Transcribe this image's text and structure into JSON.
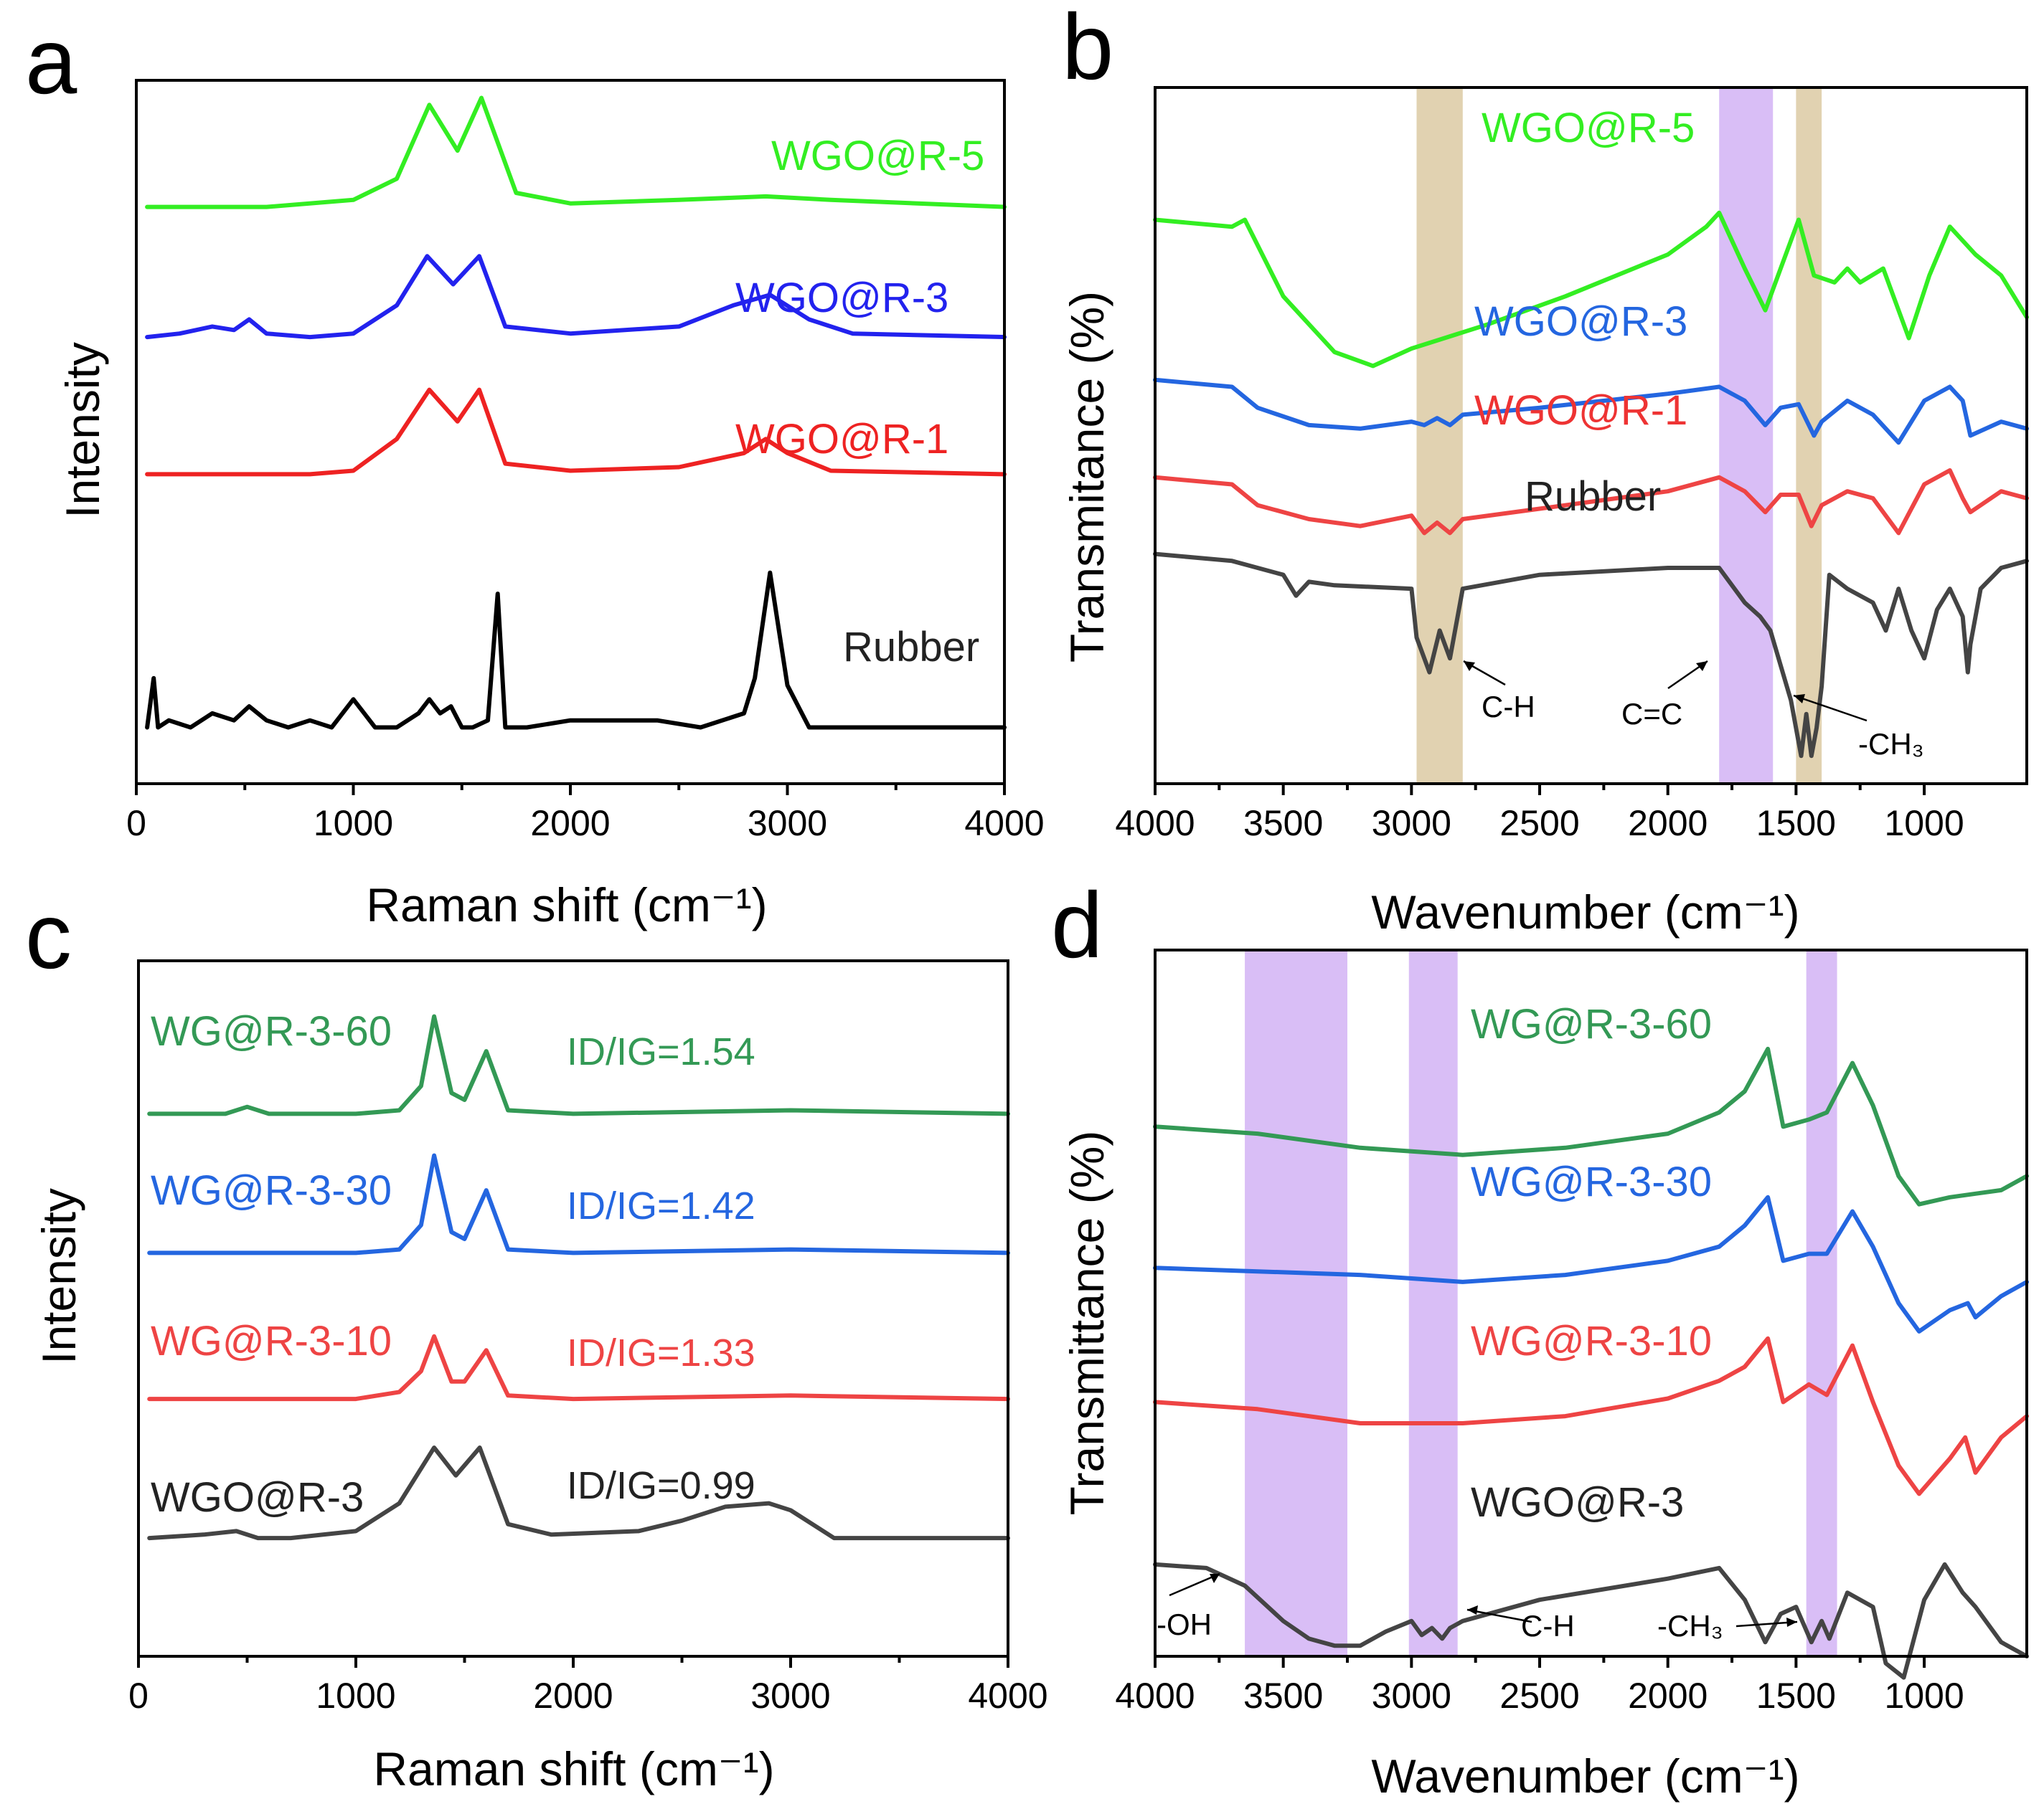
{
  "chart_data": [
    {
      "panel": "a",
      "type": "line",
      "xlabel": "Raman shift (cm⁻¹)",
      "ylabel": "Intensity",
      "xlim": [
        0,
        4000
      ],
      "ylim": [
        0,
        100
      ],
      "xticks": [
        0,
        1000,
        2000,
        3000,
        4000
      ],
      "xtick_labels": [
        "0",
        "1000",
        "2000",
        "3000",
        "4000"
      ],
      "series": [
        {
          "name": "WGO@R-5",
          "color": "#33ee22",
          "x": [
            50,
            600,
            1000,
            1200,
            1350,
            1480,
            1590,
            1750,
            2000,
            2500,
            2900,
            3200,
            4000
          ],
          "y": [
            82,
            82,
            83,
            86,
            96.5,
            90,
            97.5,
            84,
            82.5,
            83,
            83.5,
            83,
            82
          ]
        },
        {
          "name": "WGO@R-3",
          "color": "#2222ee",
          "x": [
            50,
            200,
            350,
            450,
            520,
            600,
            800,
            1000,
            1200,
            1340,
            1460,
            1580,
            1700,
            2000,
            2500,
            2750,
            2920,
            3100,
            3300,
            4000
          ],
          "y": [
            63.5,
            64,
            65,
            64.5,
            66,
            64,
            63.5,
            64,
            68,
            75,
            71,
            75,
            65,
            64,
            65,
            68,
            69.5,
            66,
            64,
            63.5
          ]
        },
        {
          "name": "WGO@R-1",
          "color": "#ee2222",
          "x": [
            50,
            800,
            1000,
            1200,
            1350,
            1480,
            1580,
            1700,
            2000,
            2500,
            2800,
            2900,
            3000,
            3200,
            4000
          ],
          "y": [
            44,
            44,
            44.5,
            49,
            56,
            51.5,
            56,
            45.5,
            44.5,
            45,
            47,
            49,
            47,
            44.5,
            44
          ]
        },
        {
          "name": "Rubber",
          "color": "#000000",
          "x": [
            50,
            80,
            100,
            150,
            250,
            350,
            450,
            520,
            600,
            700,
            800,
            900,
            1000,
            1100,
            1200,
            1300,
            1350,
            1400,
            1450,
            1500,
            1550,
            1620,
            1665,
            1700,
            1800,
            2000,
            2200,
            2400,
            2600,
            2800,
            2850,
            2920,
            3000,
            3100,
            3500,
            4000
          ],
          "y": [
            8,
            15,
            8,
            9,
            8,
            10,
            9,
            11,
            9,
            8,
            9,
            8,
            12,
            8,
            8,
            10,
            12,
            10,
            11,
            8,
            8,
            9,
            27,
            8,
            8,
            9,
            9,
            9,
            8,
            10,
            15,
            30,
            14,
            8,
            8,
            8
          ]
        }
      ],
      "text_labels": [
        "WGO@R-5",
        "WGO@R-3",
        "WGO@R-1",
        "Rubber"
      ]
    },
    {
      "panel": "b",
      "type": "line",
      "xlabel": "Wavenumber (cm⁻¹)",
      "ylabel": "Transmitance (%)",
      "xlim": [
        4000,
        600
      ],
      "ylim": [
        0,
        100
      ],
      "xticks": [
        4000,
        3500,
        3000,
        2500,
        2000,
        1500,
        1000
      ],
      "xtick_labels": [
        "4000",
        "3500",
        "3000",
        "2500",
        "2000",
        "1500",
        "1000"
      ],
      "bands": [
        {
          "from": 2980,
          "to": 2800,
          "color": "#dccaa3"
        },
        {
          "from": 1800,
          "to": 1590,
          "color": "#d2b3f5"
        },
        {
          "from": 1500,
          "to": 1400,
          "color": "#dccaa3"
        }
      ],
      "series": [
        {
          "name": "WGO@R-5",
          "color": "#33ee22",
          "x": [
            4000,
            3700,
            3650,
            3500,
            3300,
            3150,
            3000,
            2700,
            2400,
            2000,
            1850,
            1800,
            1700,
            1620,
            1560,
            1490,
            1430,
            1350,
            1300,
            1250,
            1160,
            1060,
            980,
            900,
            850,
            800,
            700,
            600
          ],
          "y": [
            81,
            80,
            81,
            70,
            62,
            60,
            62.5,
            66,
            70,
            76,
            80,
            82,
            74,
            68,
            74,
            81,
            73,
            72,
            74,
            72,
            74,
            64,
            73,
            80,
            78,
            76,
            73,
            67
          ]
        },
        {
          "name": "WGO@R-3",
          "color": "#2466e0",
          "x": [
            4000,
            3700,
            3600,
            3400,
            3200,
            3000,
            2950,
            2900,
            2850,
            2800,
            2500,
            2000,
            1800,
            1700,
            1620,
            1560,
            1490,
            1430,
            1400,
            1300,
            1200,
            1100,
            1000,
            900,
            850,
            820,
            700,
            600
          ],
          "y": [
            58,
            57,
            54,
            51.5,
            51,
            52,
            51.5,
            52.5,
            51.5,
            53,
            54,
            56,
            57,
            55,
            51.5,
            54,
            54.5,
            50,
            52,
            55,
            53,
            49,
            55,
            57,
            55,
            50,
            52,
            51
          ]
        },
        {
          "name": "WGO@R-1",
          "color": "#ee4444",
          "x": [
            4000,
            3700,
            3600,
            3400,
            3200,
            3000,
            2950,
            2900,
            2850,
            2800,
            2500,
            2000,
            1800,
            1700,
            1620,
            1560,
            1490,
            1440,
            1400,
            1300,
            1200,
            1100,
            1000,
            900,
            850,
            820,
            700,
            600
          ],
          "y": [
            44,
            43,
            40,
            38,
            37,
            38.5,
            36,
            37.5,
            36,
            38,
            39.5,
            42,
            44,
            42,
            39,
            41.5,
            41.5,
            37,
            40,
            42,
            41,
            36,
            43,
            45,
            41,
            39,
            42,
            41
          ]
        },
        {
          "name": "Rubber",
          "color": "#444444",
          "x": [
            4000,
            3700,
            3600,
            3500,
            3450,
            3400,
            3300,
            3000,
            2980,
            2930,
            2890,
            2850,
            2800,
            2500,
            2000,
            1800,
            1700,
            1640,
            1600,
            1520,
            1480,
            1460,
            1440,
            1420,
            1400,
            1370,
            1300,
            1200,
            1150,
            1100,
            1050,
            1000,
            950,
            900,
            850,
            830,
            820,
            780,
            700,
            600
          ],
          "y": [
            33,
            32,
            31,
            30,
            27,
            29,
            28.5,
            28,
            21,
            16,
            22,
            18,
            28,
            30,
            31,
            31,
            26,
            24,
            22,
            12,
            4,
            10,
            4,
            8,
            14,
            30,
            28,
            26,
            22,
            28,
            22,
            18,
            25,
            28,
            24,
            16,
            20,
            28,
            31,
            32
          ]
        }
      ],
      "text_labels": [
        "WGO@R-5",
        "WGO@R-3",
        "WGO@R-1",
        "Rubber"
      ],
      "annotations": [
        "C-H",
        "C=C",
        "-CH₃"
      ]
    },
    {
      "panel": "c",
      "type": "line",
      "xlabel": "Raman shift (cm⁻¹)",
      "ylabel": "Intensity",
      "xlim": [
        0,
        4000
      ],
      "ylim": [
        0,
        100
      ],
      "xticks": [
        0,
        1000,
        2000,
        3000,
        4000
      ],
      "xtick_labels": [
        "0",
        "1000",
        "2000",
        "3000",
        "4000"
      ],
      "series": [
        {
          "name": "WG@R-3-60",
          "color": "#339955",
          "x": [
            50,
            400,
            500,
            600,
            1000,
            1200,
            1300,
            1360,
            1440,
            1500,
            1600,
            1700,
            2000,
            3000,
            4000
          ],
          "y": [
            78,
            78,
            79,
            78,
            78,
            78.5,
            82,
            92,
            81,
            80,
            87,
            78.5,
            78,
            78.5,
            78
          ]
        },
        {
          "name": "WG@R-3-30",
          "color": "#2466e0",
          "x": [
            50,
            1000,
            1200,
            1300,
            1360,
            1440,
            1500,
            1600,
            1700,
            2000,
            3000,
            4000
          ],
          "y": [
            58,
            58,
            58.5,
            62,
            72,
            61,
            60,
            67,
            58.5,
            58,
            58.5,
            58
          ]
        },
        {
          "name": "WG@R-3-10",
          "color": "#ee4444",
          "x": [
            50,
            1000,
            1200,
            1300,
            1360,
            1440,
            1500,
            1600,
            1700,
            2000,
            3000,
            4000
          ],
          "y": [
            37,
            37,
            38,
            41,
            46,
            39.5,
            39.5,
            44,
            37.5,
            37,
            37.5,
            37
          ]
        },
        {
          "name": "WGO@R-3",
          "color": "#444444",
          "x": [
            50,
            300,
            450,
            550,
            700,
            1000,
            1200,
            1360,
            1460,
            1570,
            1700,
            1900,
            2300,
            2500,
            2700,
            2900,
            3000,
            3200,
            4000
          ],
          "y": [
            17,
            17.5,
            18,
            17,
            17,
            18,
            22,
            30,
            26,
            30,
            19,
            17.5,
            18,
            19.5,
            21.5,
            22,
            21,
            17,
            17
          ]
        }
      ],
      "text_labels": [
        "WG@R-3-60",
        "WG@R-3-30",
        "WG@R-3-10",
        "WGO@R-3"
      ],
      "ratios": [
        "ID/IG=1.54",
        "ID/IG=1.42",
        "ID/IG=1.33",
        "ID/IG=0.99"
      ]
    },
    {
      "panel": "d",
      "type": "line",
      "xlabel": "Wavenumber (cm⁻¹)",
      "ylabel": "Transmittance (%)",
      "xlim": [
        4000,
        600
      ],
      "ylim": [
        0,
        100
      ],
      "xticks": [
        4000,
        3500,
        3000,
        2500,
        2000,
        1500,
        1000
      ],
      "xtick_labels": [
        "4000",
        "3500",
        "3000",
        "2500",
        "2000",
        "1500",
        "1000"
      ],
      "bands": [
        {
          "from": 3650,
          "to": 3250,
          "color": "#d2b3f5"
        },
        {
          "from": 3010,
          "to": 2820,
          "color": "#d2b3f5"
        },
        {
          "from": 1460,
          "to": 1340,
          "color": "#d2b3f5"
        }
      ],
      "series": [
        {
          "name": "WG@R-3-60",
          "color": "#339955",
          "x": [
            4000,
            3600,
            3200,
            2800,
            2400,
            2000,
            1800,
            1700,
            1610,
            1550,
            1450,
            1380,
            1280,
            1200,
            1100,
            1020,
            900,
            800,
            700,
            600
          ],
          "y": [
            75,
            74,
            72,
            71,
            72,
            74,
            77,
            80,
            86,
            75,
            76,
            77,
            84,
            78,
            68,
            64,
            65,
            65.5,
            66,
            68
          ]
        },
        {
          "name": "WG@R-3-30",
          "color": "#2466e0",
          "x": [
            4000,
            3600,
            3200,
            2800,
            2400,
            2000,
            1800,
            1700,
            1610,
            1550,
            1450,
            1380,
            1280,
            1200,
            1100,
            1020,
            900,
            830,
            800,
            700,
            600
          ],
          "y": [
            55,
            54.5,
            54,
            53,
            54,
            56,
            58,
            61,
            65,
            56,
            57,
            57,
            63,
            58,
            50,
            46,
            49,
            50,
            48,
            51,
            53
          ]
        },
        {
          "name": "WG@R-3-10",
          "color": "#ee4444",
          "x": [
            4000,
            3600,
            3200,
            2800,
            2400,
            2000,
            1800,
            1700,
            1610,
            1550,
            1450,
            1380,
            1280,
            1200,
            1100,
            1020,
            900,
            840,
            800,
            700,
            600
          ],
          "y": [
            36,
            35,
            33,
            33,
            34,
            36.5,
            39,
            41,
            45,
            36,
            38.5,
            37,
            44,
            36,
            27,
            23,
            28,
            31,
            26,
            31,
            34
          ]
        },
        {
          "name": "WGO@R-3",
          "color": "#444444",
          "x": [
            4000,
            3800,
            3650,
            3500,
            3400,
            3300,
            3200,
            3100,
            3000,
            2960,
            2920,
            2880,
            2850,
            2800,
            2500,
            2000,
            1800,
            1700,
            1620,
            1560,
            1500,
            1440,
            1400,
            1370,
            1300,
            1200,
            1150,
            1080,
            1000,
            920,
            850,
            800,
            700,
            600
          ],
          "y": [
            13,
            12.5,
            10,
            5,
            2.5,
            1.5,
            1.5,
            3.5,
            5,
            3,
            4,
            2.5,
            4,
            5,
            8,
            11,
            12.5,
            8,
            2,
            6,
            7,
            2,
            5,
            2.5,
            9,
            7,
            -1,
            -3,
            8,
            13,
            9,
            7,
            2,
            0
          ]
        }
      ],
      "text_labels": [
        "WG@R-3-60",
        "WG@R-3-30",
        "WG@R-3-10",
        "WGO@R-3"
      ],
      "annotations": [
        "-OH",
        "C-H",
        "-CH₃"
      ]
    }
  ]
}
